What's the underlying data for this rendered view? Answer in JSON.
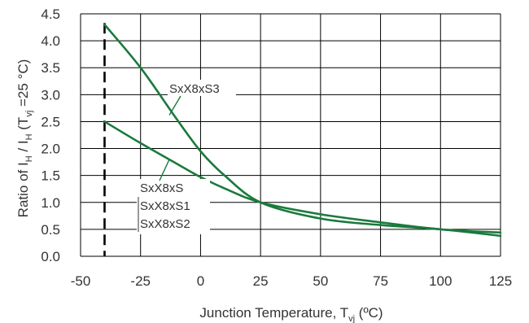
{
  "chart_data": {
    "type": "line",
    "xlabel": {
      "main": "Junction Temperature, T",
      "sub": "vj",
      "unit": " (ºC)"
    },
    "ylabel": {
      "part1": "Ratio of I",
      "sub1": "H",
      "part2": " / I",
      "sub2": "H",
      "part3": " (T",
      "sub3": "vj",
      "part4": " =25 °C)"
    },
    "xlim": [
      -50,
      125
    ],
    "ylim": [
      0,
      4.5
    ],
    "x_ticks": [
      -50,
      -25,
      0,
      25,
      50,
      75,
      100,
      125
    ],
    "y_ticks": [
      "0.0",
      "0.5",
      "1.0",
      "1.5",
      "2.0",
      "2.5",
      "3.0",
      "3.5",
      "4.0",
      "4.5"
    ],
    "grid": true,
    "reference_line": {
      "x": -40,
      "style": "dashed"
    },
    "line_color": "#1a7a3c",
    "series": [
      {
        "name": "SxX8xS3",
        "x": [
          -40,
          -25,
          -10,
          0,
          10,
          25,
          50,
          75,
          100,
          125
        ],
        "y": [
          4.3,
          3.5,
          2.55,
          1.95,
          1.5,
          1.0,
          0.7,
          0.58,
          0.5,
          0.38
        ]
      },
      {
        "name": "SxX8xS / SxX8xS1 / SxX8xS2",
        "x": [
          -40,
          -25,
          -10,
          0,
          10,
          25,
          50,
          75,
          100,
          125
        ],
        "y": [
          2.5,
          2.1,
          1.72,
          1.47,
          1.26,
          1.0,
          0.78,
          0.63,
          0.5,
          0.44
        ]
      }
    ],
    "annotations": {
      "s3": "SxX8xS3",
      "group": [
        "SxX8xS",
        "SxX8xS1",
        "SxX8xS2"
      ]
    }
  }
}
